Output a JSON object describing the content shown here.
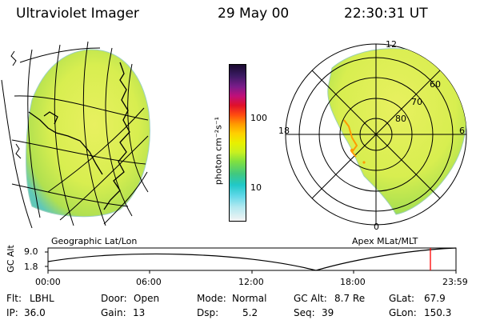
{
  "header": {
    "title": "Ultraviolet Imager",
    "date": "29 May 00",
    "time": "22:30:31 UT"
  },
  "left_panel": {
    "caption": "Geographic Lat/Lon"
  },
  "right_panel": {
    "caption": "Apex MLat/MLT",
    "mlt_labels": {
      "top": "12",
      "right": "6",
      "left": "18",
      "bottom": "0"
    },
    "lat_labels": [
      "60",
      "70",
      "80"
    ]
  },
  "colorbar": {
    "unit_label": "photon cm⁻²s⁻¹",
    "ticks": [
      "100",
      "10"
    ]
  },
  "timeline": {
    "ylabel": "GC Alt",
    "ytick_top": "9.0",
    "ytick_bottom": "1.8",
    "xticks": [
      "00:00",
      "06:00",
      "12:00",
      "18:00",
      "23:59"
    ],
    "current_marker_color": "#ff0000"
  },
  "info": {
    "flt_label": "Flt:",
    "flt_value": "LBHL",
    "door_label": "Door:",
    "door_value": "Open",
    "mode_label": "Mode:",
    "mode_value": "Normal",
    "gcalt_label": "GC Alt:",
    "gcalt_value": "8.7 Re",
    "glat_label": "GLat:",
    "glat_value": "67.9",
    "ip_label": "IP:",
    "ip_value": "36.0",
    "gain_label": "Gain:",
    "gain_value": "13",
    "dsp_label": "Dsp:",
    "dsp_value": "5.2",
    "seq_label": "Seq:",
    "seq_value": "39",
    "glon_label": "GLon:",
    "glon_value": "150.3"
  }
}
